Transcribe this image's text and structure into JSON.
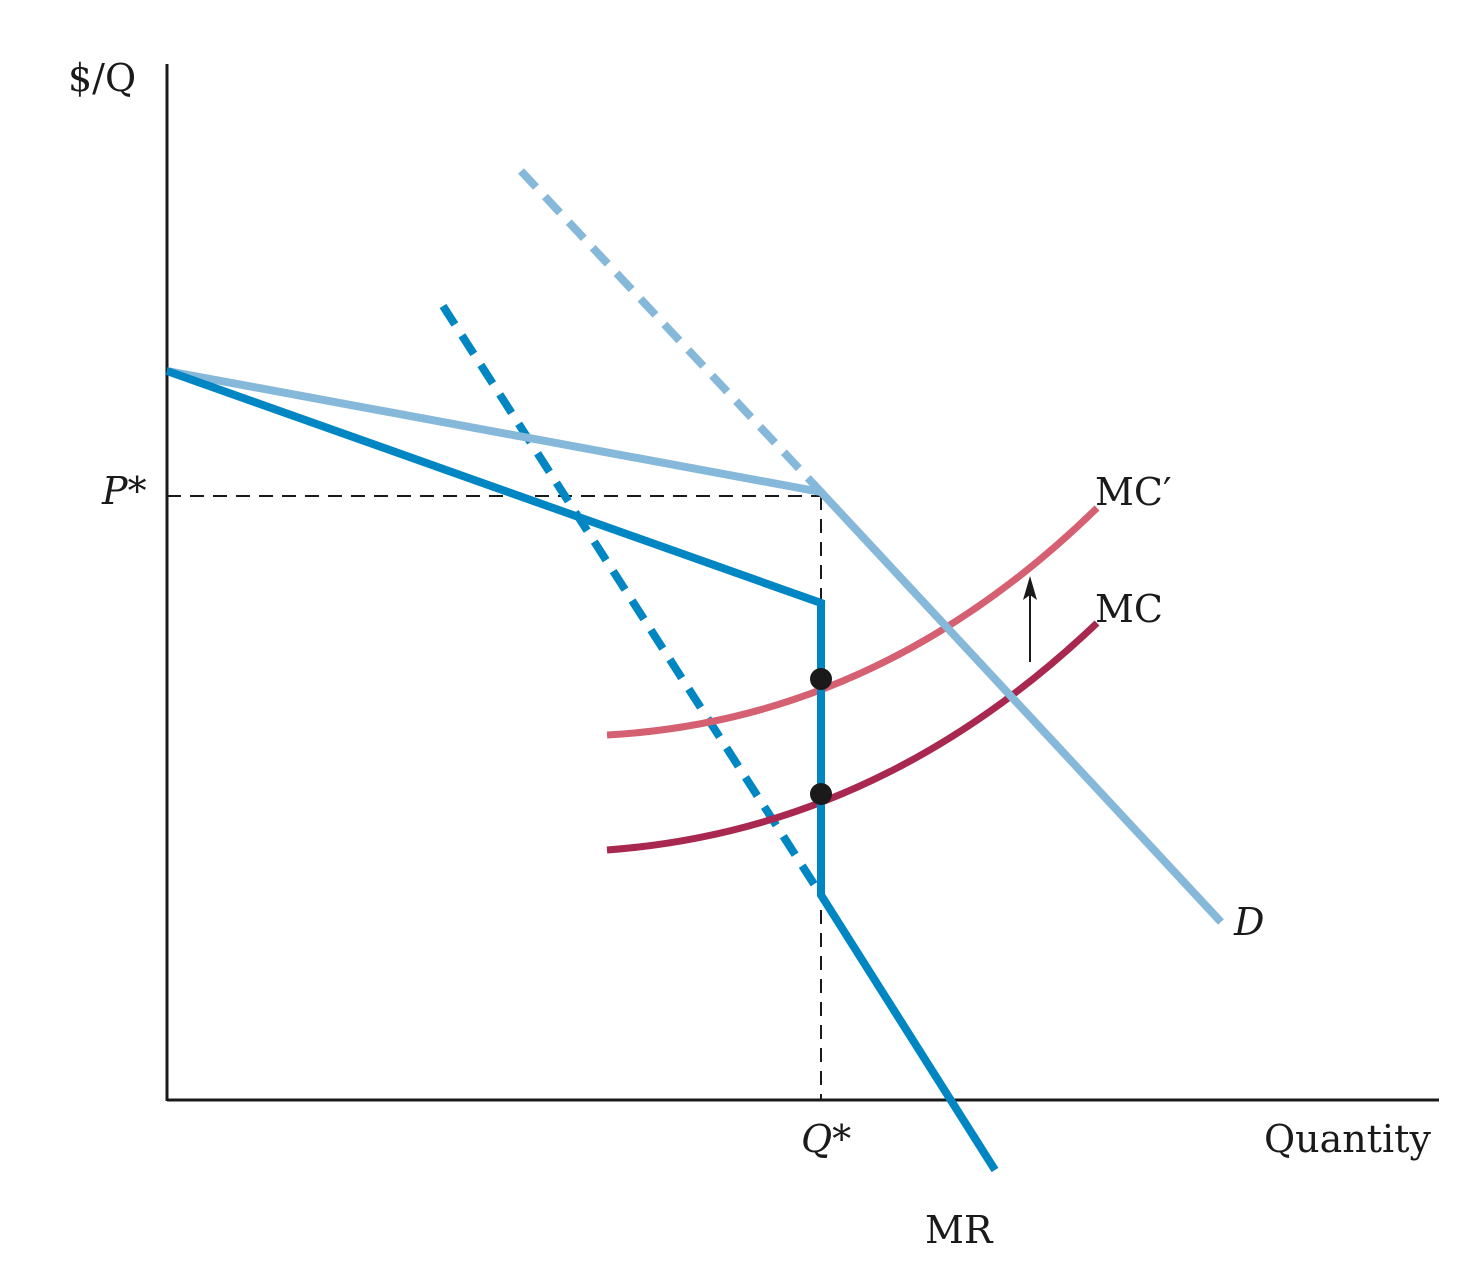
{
  "labels": {
    "y_axis": "$/Q",
    "x_axis": "Quantity",
    "price": "P*",
    "quantity": "Q*",
    "mc": "MC",
    "mc_prime": "MC′",
    "demand": "D",
    "marginal_revenue": "MR"
  },
  "colors": {
    "axis": "#1a1a1a",
    "demand": "#86b8d9",
    "marginal_revenue": "#0086c3",
    "mc": "#a8284f",
    "mc_prime": "#d46071",
    "guides": "#1a1a1a"
  }
}
